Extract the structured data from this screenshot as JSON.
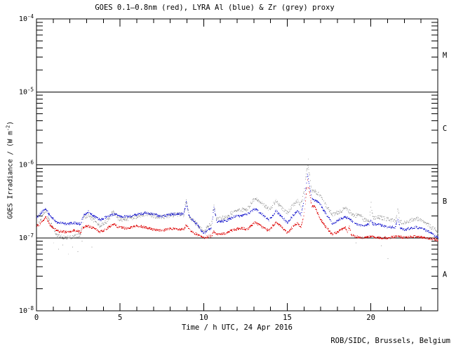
{
  "page": {
    "credit": "ROB/SIDC, Brussels, Belgium",
    "background": "#ffffff",
    "axis_color": "#000000"
  },
  "chart_data": {
    "type": "scatter",
    "title": "GOES 0.1—0.8nm (red), LYRA Al (blue) & Zr (grey) proxy",
    "xlabel": "Time / h UTC, 24 Apr 2016",
    "ylabel_pre": "GOES Irradiance / (W m",
    "ylabel_sup": "-2",
    "ylabel_post": ")",
    "x_range_hours": [
      0,
      24
    ],
    "x_major_ticks": [
      0,
      5,
      10,
      15,
      20
    ],
    "x_minor_tick_every_hours": 1,
    "y_log_range": [
      1e-08,
      0.0001
    ],
    "grid": "off",
    "legend": "in title",
    "y_decade_ticks": [
      {
        "value": 0.0001,
        "base": "10",
        "exp": "-4"
      },
      {
        "value": 1e-05,
        "base": "10",
        "exp": "-5"
      },
      {
        "value": 1e-06,
        "base": "10",
        "exp": "-6"
      },
      {
        "value": 1e-07,
        "base": "10",
        "exp": "-7"
      },
      {
        "value": 1e-08,
        "base": "10",
        "exp": "-8"
      }
    ],
    "class_boundary_lines": [
      1e-05,
      1e-06,
      1e-07
    ],
    "flare_classes": [
      {
        "label": "M",
        "upper": 0.0001,
        "lower": 1e-05
      },
      {
        "label": "C",
        "upper": 1e-05,
        "lower": 1e-06
      },
      {
        "label": "B",
        "upper": 1e-06,
        "lower": 1e-07
      },
      {
        "label": "A",
        "upper": 1e-07,
        "lower": 1e-08
      }
    ],
    "series": [
      {
        "name": "LYRA Zr (grey) proxy",
        "color": "#9e9e9e",
        "points": [
          [
            0,
            1.4e-07
          ],
          [
            0.3,
            1.9e-07
          ],
          [
            0.55,
            2.4e-07
          ],
          [
            0.8,
            1.6e-07
          ],
          [
            1.2,
            1.1e-07
          ],
          [
            1.7,
            1e-07
          ],
          [
            2.2,
            1.05e-07
          ],
          [
            2.6,
            1.1e-07
          ],
          [
            2.8,
            1.85e-07
          ],
          [
            3.1,
            2e-07
          ],
          [
            3.4,
            1.75e-07
          ],
          [
            3.8,
            1.45e-07
          ],
          [
            4.2,
            1.7e-07
          ],
          [
            4.6,
            2.3e-07
          ],
          [
            4.9,
            1.8e-07
          ],
          [
            5.4,
            1.8e-07
          ],
          [
            6.0,
            1.95e-07
          ],
          [
            6.5,
            2.1e-07
          ],
          [
            7.0,
            2e-07
          ],
          [
            7.5,
            1.9e-07
          ],
          [
            8.0,
            2.05e-07
          ],
          [
            8.5,
            2.1e-07
          ],
          [
            8.8,
            2.05e-07
          ],
          [
            8.94,
            3.3e-07
          ],
          [
            9.1,
            2e-07
          ],
          [
            9.6,
            1.5e-07
          ],
          [
            10.0,
            1.2e-07
          ],
          [
            10.3,
            1.5e-07
          ],
          [
            10.45,
            1.55e-07
          ],
          [
            10.6,
            2.9e-07
          ],
          [
            10.75,
            1.8e-07
          ],
          [
            11.3,
            1.9e-07
          ],
          [
            11.8,
            2.3e-07
          ],
          [
            12.2,
            2.4e-07
          ],
          [
            12.6,
            2.5e-07
          ],
          [
            13.05,
            3.5e-07
          ],
          [
            13.5,
            2.9e-07
          ],
          [
            13.9,
            2.4e-07
          ],
          [
            14.3,
            3.2e-07
          ],
          [
            14.7,
            2.5e-07
          ],
          [
            15.0,
            2.2e-07
          ],
          [
            15.3,
            2.7e-07
          ],
          [
            15.6,
            3.2e-07
          ],
          [
            15.8,
            2.8e-07
          ],
          [
            16.0,
            4.5e-07
          ],
          [
            16.2,
            1e-06
          ],
          [
            16.45,
            4.6e-07
          ],
          [
            16.6,
            4.4e-07
          ],
          [
            16.9,
            4e-07
          ],
          [
            17.2,
            3e-07
          ],
          [
            17.7,
            2.05e-07
          ],
          [
            18.1,
            2.3e-07
          ],
          [
            18.45,
            2.5e-07
          ],
          [
            18.7,
            2.3e-07
          ],
          [
            19.0,
            2e-07
          ],
          [
            19.3,
            2.1e-07
          ],
          [
            19.6,
            1.75e-07
          ],
          [
            19.9,
            1.8e-07
          ],
          [
            20.0,
            3e-07
          ],
          [
            20.1,
            1.85e-07
          ],
          [
            20.5,
            1.9e-07
          ],
          [
            21.0,
            1.8e-07
          ],
          [
            21.45,
            1.7e-07
          ],
          [
            21.6,
            2.5e-07
          ],
          [
            21.75,
            1.65e-07
          ],
          [
            22.0,
            1.65e-07
          ],
          [
            22.3,
            1.7e-07
          ],
          [
            22.7,
            1.85e-07
          ],
          [
            23.0,
            1.7e-07
          ],
          [
            23.4,
            1.5e-07
          ],
          [
            23.8,
            1.3e-07
          ],
          [
            24,
            1.15e-07
          ]
        ],
        "outlier_points": [
          [
            1.0,
            8.5e-08
          ],
          [
            1.3,
            7e-08
          ],
          [
            1.55,
            8e-08
          ],
          [
            1.9,
            6e-08
          ],
          [
            2.15,
            7.5e-08
          ],
          [
            2.45,
            6.5e-08
          ],
          [
            2.7,
            9e-08
          ],
          [
            3.3,
            7.5e-08
          ],
          [
            16.25,
            1.2e-06
          ],
          [
            19.1,
            8.5e-08
          ],
          [
            20.6,
            7.8e-08
          ],
          [
            21.0,
            5.2e-08
          ]
        ]
      },
      {
        "name": "LYRA Al (blue) proxy",
        "color": "#1414cc",
        "points": [
          [
            0,
            1.9e-07
          ],
          [
            0.3,
            2.25e-07
          ],
          [
            0.55,
            2.5e-07
          ],
          [
            0.8,
            2e-07
          ],
          [
            1.2,
            1.65e-07
          ],
          [
            1.7,
            1.55e-07
          ],
          [
            2.2,
            1.6e-07
          ],
          [
            2.6,
            1.55e-07
          ],
          [
            2.8,
            2.05e-07
          ],
          [
            3.1,
            2.3e-07
          ],
          [
            3.4,
            2e-07
          ],
          [
            3.8,
            1.75e-07
          ],
          [
            4.2,
            1.95e-07
          ],
          [
            4.6,
            2.1e-07
          ],
          [
            4.9,
            2e-07
          ],
          [
            5.4,
            1.95e-07
          ],
          [
            6.0,
            2.1e-07
          ],
          [
            6.5,
            2.2e-07
          ],
          [
            7.0,
            2.1e-07
          ],
          [
            7.5,
            1.95e-07
          ],
          [
            8.0,
            2.1e-07
          ],
          [
            8.5,
            2.15e-07
          ],
          [
            8.8,
            2.1e-07
          ],
          [
            8.94,
            3.1e-07
          ],
          [
            9.1,
            2e-07
          ],
          [
            9.6,
            1.5e-07
          ],
          [
            10.0,
            1.15e-07
          ],
          [
            10.3,
            1.3e-07
          ],
          [
            10.45,
            1.35e-07
          ],
          [
            10.6,
            2.6e-07
          ],
          [
            10.75,
            1.7e-07
          ],
          [
            11.3,
            1.7e-07
          ],
          [
            11.8,
            1.95e-07
          ],
          [
            12.2,
            2e-07
          ],
          [
            12.6,
            2.1e-07
          ],
          [
            13.05,
            2.5e-07
          ],
          [
            13.5,
            2.1e-07
          ],
          [
            13.9,
            1.75e-07
          ],
          [
            14.3,
            2.35e-07
          ],
          [
            14.7,
            1.9e-07
          ],
          [
            15.0,
            1.6e-07
          ],
          [
            15.3,
            2e-07
          ],
          [
            15.6,
            2.4e-07
          ],
          [
            15.8,
            2.1e-07
          ],
          [
            16.0,
            3.3e-07
          ],
          [
            16.2,
            7.2e-07
          ],
          [
            16.45,
            3.4e-07
          ],
          [
            16.6,
            3.3e-07
          ],
          [
            16.9,
            3e-07
          ],
          [
            17.2,
            2.3e-07
          ],
          [
            17.7,
            1.55e-07
          ],
          [
            18.1,
            1.8e-07
          ],
          [
            18.45,
            1.95e-07
          ],
          [
            18.7,
            1.8e-07
          ],
          [
            19.0,
            1.6e-07
          ],
          [
            19.5,
            1.45e-07
          ],
          [
            19.9,
            1.55e-07
          ],
          [
            20.0,
            1.75e-07
          ],
          [
            20.1,
            1.55e-07
          ],
          [
            20.5,
            1.5e-07
          ],
          [
            21.0,
            1.4e-07
          ],
          [
            21.45,
            1.4e-07
          ],
          [
            21.6,
            1.9e-07
          ],
          [
            21.75,
            1.35e-07
          ],
          [
            22.0,
            1.3e-07
          ],
          [
            22.7,
            1.4e-07
          ],
          [
            23.2,
            1.3e-07
          ],
          [
            23.6,
            1.15e-07
          ],
          [
            24,
            1e-07
          ]
        ],
        "outlier_points": []
      },
      {
        "name": "GOES 0.1-0.8nm (red)",
        "color": "#dd0000",
        "points": [
          [
            0,
            1.45e-07
          ],
          [
            0.3,
            1.62e-07
          ],
          [
            0.55,
            1.95e-07
          ],
          [
            0.8,
            1.5e-07
          ],
          [
            1.2,
            1.25e-07
          ],
          [
            1.7,
            1.2e-07
          ],
          [
            2.2,
            1.27e-07
          ],
          [
            2.6,
            1.2e-07
          ],
          [
            2.8,
            1.4e-07
          ],
          [
            3.1,
            1.45e-07
          ],
          [
            3.4,
            1.35e-07
          ],
          [
            3.8,
            1.2e-07
          ],
          [
            4.2,
            1.35e-07
          ],
          [
            4.6,
            1.55e-07
          ],
          [
            4.9,
            1.4e-07
          ],
          [
            5.4,
            1.35e-07
          ],
          [
            6.0,
            1.45e-07
          ],
          [
            6.5,
            1.4e-07
          ],
          [
            7.0,
            1.3e-07
          ],
          [
            7.5,
            1.25e-07
          ],
          [
            8.0,
            1.35e-07
          ],
          [
            8.5,
            1.3e-07
          ],
          [
            8.8,
            1.3e-07
          ],
          [
            8.94,
            1.5e-07
          ],
          [
            9.1,
            1.3e-07
          ],
          [
            9.6,
            1.1e-07
          ],
          [
            10.0,
            1e-07
          ],
          [
            10.3,
            1.05e-07
          ],
          [
            10.45,
            1.05e-07
          ],
          [
            10.6,
            1.25e-07
          ],
          [
            10.75,
            1.12e-07
          ],
          [
            11.3,
            1.15e-07
          ],
          [
            11.8,
            1.3e-07
          ],
          [
            12.2,
            1.35e-07
          ],
          [
            12.6,
            1.3e-07
          ],
          [
            13.05,
            1.65e-07
          ],
          [
            13.5,
            1.4e-07
          ],
          [
            13.9,
            1.25e-07
          ],
          [
            14.3,
            1.65e-07
          ],
          [
            14.7,
            1.35e-07
          ],
          [
            15.0,
            1.17e-07
          ],
          [
            15.3,
            1.4e-07
          ],
          [
            15.6,
            1.6e-07
          ],
          [
            15.8,
            1.4e-07
          ],
          [
            16.0,
            2.2e-07
          ],
          [
            16.2,
            6.2e-07
          ],
          [
            16.45,
            2.6e-07
          ],
          [
            16.6,
            2.8e-07
          ],
          [
            16.9,
            1.9e-07
          ],
          [
            17.2,
            1.5e-07
          ],
          [
            17.7,
            1.1e-07
          ],
          [
            18.1,
            1.25e-07
          ],
          [
            18.45,
            1.4e-07
          ],
          [
            18.6,
            1.2e-07
          ],
          [
            18.7,
            1.45e-07
          ],
          [
            18.8,
            1.1e-07
          ],
          [
            19.0,
            1.05e-07
          ],
          [
            19.5,
            1e-07
          ],
          [
            20.0,
            1.05e-07
          ],
          [
            20.5,
            1e-07
          ],
          [
            21.0,
            1e-07
          ],
          [
            21.6,
            1.05e-07
          ],
          [
            22.0,
            1e-07
          ],
          [
            22.7,
            1.05e-07
          ],
          [
            23.2,
            1e-07
          ],
          [
            23.6,
            9.7e-08
          ],
          [
            24,
            9.3e-08
          ]
        ],
        "outlier_points": []
      }
    ]
  }
}
